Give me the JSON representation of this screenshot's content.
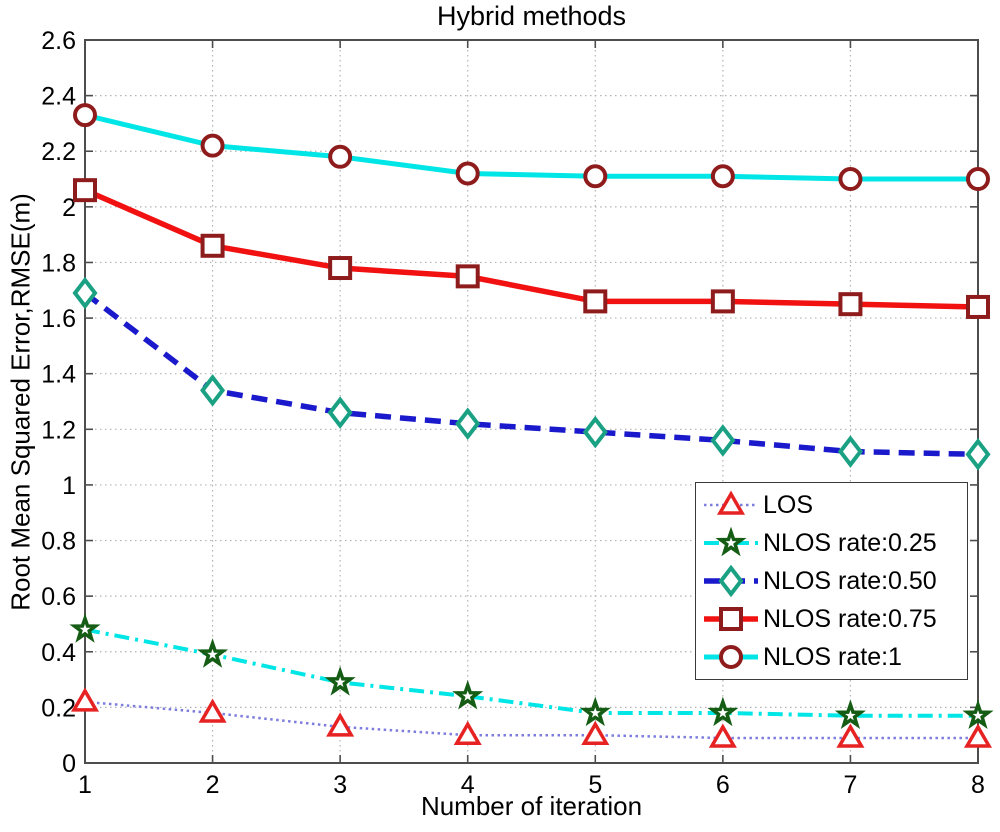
{
  "chart_data": {
    "type": "line",
    "title": "Hybrid methods",
    "xlabel": "Number of iteration",
    "ylabel": "Root Mean Squared Error,RMSE(m)",
    "x": [
      1,
      2,
      3,
      4,
      5,
      6,
      7,
      8
    ],
    "xlim": [
      1,
      8
    ],
    "ylim": [
      0,
      2.6
    ],
    "xticks": [
      1,
      2,
      3,
      4,
      5,
      6,
      7,
      8
    ],
    "xtick_labels": [
      "1",
      "2",
      "3",
      "4",
      "5",
      "6",
      "7",
      "8"
    ],
    "yticks": [
      0,
      0.2,
      0.4,
      0.6,
      0.8,
      1,
      1.2,
      1.4,
      1.6,
      1.8,
      2,
      2.2,
      2.4,
      2.6
    ],
    "ytick_labels": [
      "0",
      "0.2",
      "0.4",
      "0.6",
      "0.8",
      "1",
      "1.2",
      "1.4",
      "1.6",
      "1.8",
      "2",
      "2.2",
      "2.4",
      "2.6"
    ],
    "grid": true,
    "legend_position": "right-center",
    "colors": {
      "background": "#ffffff",
      "axis": "#4d4d4d",
      "gridline": "#b3b3b3",
      "text": "#000000"
    },
    "series": [
      {
        "name": "LOS",
        "marker": "triangle",
        "marker_color": "#e62222",
        "line_color": "#7d7de0",
        "line_style": "dotted",
        "values": [
          0.22,
          0.18,
          0.13,
          0.1,
          0.1,
          0.09,
          0.09,
          0.09
        ]
      },
      {
        "name": "NLOS rate:0.25",
        "marker": "star",
        "marker_color": "#155c15",
        "line_color": "#00e6e6",
        "line_style": "dashdot",
        "values": [
          0.48,
          0.39,
          0.29,
          0.24,
          0.18,
          0.18,
          0.17,
          0.17
        ]
      },
      {
        "name": "NLOS rate:0.50",
        "marker": "diamond",
        "marker_color": "#1aa183",
        "line_color": "#1a1acc",
        "line_style": "dashed",
        "values": [
          1.69,
          1.34,
          1.26,
          1.22,
          1.19,
          1.16,
          1.12,
          1.11
        ]
      },
      {
        "name": "NLOS rate:0.75",
        "marker": "square",
        "marker_color": "#8f1c1c",
        "line_color": "#f21111",
        "line_style": "solid",
        "values": [
          2.06,
          1.86,
          1.78,
          1.75,
          1.66,
          1.66,
          1.65,
          1.64
        ]
      },
      {
        "name": "NLOS rate:1",
        "marker": "circle",
        "marker_color": "#8f1c1c",
        "line_color": "#00e6e6",
        "line_style": "solid",
        "values": [
          2.33,
          2.22,
          2.18,
          2.12,
          2.11,
          2.11,
          2.1,
          2.1
        ]
      }
    ]
  }
}
